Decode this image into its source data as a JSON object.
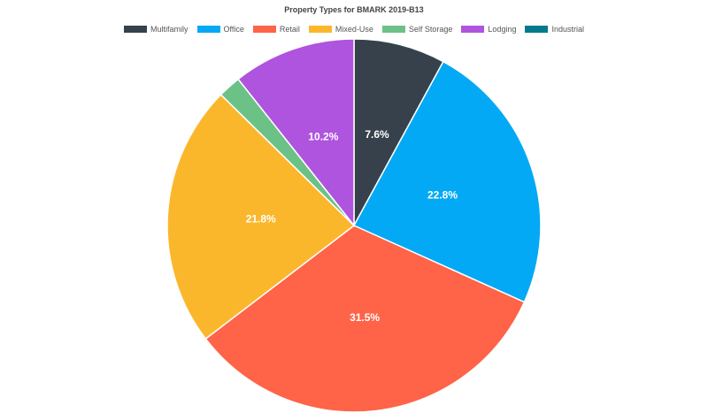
{
  "chart_data": {
    "type": "pie",
    "title": "Property Types for BMARK 2019-B13",
    "legend_position": "top",
    "categories": [
      "Multifamily",
      "Office",
      "Retail",
      "Mixed-Use",
      "Self Storage",
      "Lodging",
      "Industrial"
    ],
    "values": [
      7.6,
      22.8,
      31.5,
      21.8,
      1.9,
      10.2,
      0.0
    ],
    "data_labels": [
      "7.6%",
      "22.8%",
      "31.5%",
      "21.8%",
      "",
      "10.2%",
      ""
    ],
    "colors": [
      "#36414b",
      "#03a9f4",
      "#ff6348",
      "#fbb72c",
      "#6cc187",
      "#af54de",
      "#007b8b"
    ]
  }
}
